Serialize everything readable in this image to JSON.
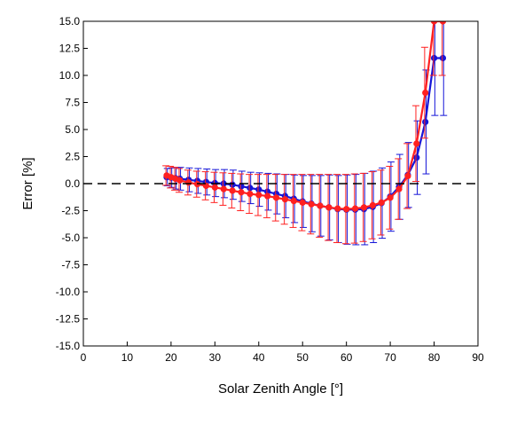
{
  "chart_data": {
    "type": "scatter",
    "xlabel": "Solar Zenith Angle [°]",
    "ylabel": "Error [%]",
    "xlim": [
      0,
      90
    ],
    "ylim": [
      -15,
      15
    ],
    "xticks": [
      0,
      10,
      20,
      30,
      40,
      50,
      60,
      70,
      80,
      90
    ],
    "yticks": [
      15.0,
      12.5,
      10.0,
      7.5,
      5.0,
      2.5,
      0.0,
      -2.5,
      -5.0,
      -7.5,
      -10.0,
      -12.5,
      -15.0
    ],
    "ytick_labels": [
      "15.0",
      "12.5",
      "10.0",
      "7.5",
      "5.0",
      "2.5",
      "0.0",
      "-2.5",
      "-5.0",
      "-7.5",
      "-10.0",
      "-12.5",
      "-15.0"
    ],
    "xtick_labels": [
      "0",
      "10",
      "20",
      "30",
      "40",
      "50",
      "60",
      "70",
      "80",
      "90"
    ],
    "reference_line": {
      "y": 0,
      "style": "dashed"
    },
    "grid": false,
    "legend": "none",
    "series": [
      {
        "color": "#1515d8",
        "x": [
          19,
          20,
          21,
          22,
          24,
          26,
          28,
          30,
          32,
          34,
          36,
          38,
          40,
          42,
          44,
          46,
          48,
          50,
          52,
          54,
          56,
          58,
          60,
          62,
          64,
          66,
          68,
          70,
          72,
          74,
          76,
          78,
          80,
          82
        ],
        "y": [
          0.6,
          0.55,
          0.5,
          0.45,
          0.35,
          0.25,
          0.15,
          0.05,
          0.0,
          -0.1,
          -0.25,
          -0.4,
          -0.55,
          -0.75,
          -0.95,
          -1.15,
          -1.4,
          -1.65,
          -1.85,
          -2.05,
          -2.2,
          -2.35,
          -2.4,
          -2.4,
          -2.35,
          -2.15,
          -1.8,
          -1.2,
          -0.3,
          0.8,
          2.4,
          5.7,
          11.6,
          11.6
        ],
        "err": [
          0.8,
          0.9,
          1.0,
          1.05,
          1.1,
          1.15,
          1.2,
          1.25,
          1.3,
          1.35,
          1.4,
          1.45,
          1.55,
          1.7,
          1.85,
          2.0,
          2.2,
          2.4,
          2.6,
          2.8,
          3.0,
          3.1,
          3.2,
          3.25,
          3.3,
          3.3,
          3.25,
          3.2,
          3.0,
          3.0,
          3.4,
          4.8,
          5.3,
          5.3
        ]
      },
      {
        "color": "#ff2020",
        "x": [
          19,
          20,
          21,
          22,
          24,
          26,
          28,
          30,
          32,
          34,
          36,
          38,
          40,
          42,
          44,
          46,
          48,
          50,
          52,
          54,
          56,
          58,
          60,
          62,
          64,
          66,
          68,
          70,
          72,
          74,
          76,
          78,
          80,
          82
        ],
        "y": [
          0.75,
          0.6,
          0.45,
          0.3,
          0.1,
          -0.05,
          -0.2,
          -0.35,
          -0.5,
          -0.65,
          -0.8,
          -0.95,
          -1.05,
          -1.15,
          -1.3,
          -1.45,
          -1.6,
          -1.75,
          -1.9,
          -2.05,
          -2.2,
          -2.3,
          -2.35,
          -2.3,
          -2.2,
          -2.0,
          -1.75,
          -1.3,
          -0.5,
          0.7,
          3.7,
          8.4,
          15.0,
          15.0
        ],
        "err": [
          0.9,
          1.0,
          1.05,
          1.1,
          1.15,
          1.2,
          1.3,
          1.4,
          1.5,
          1.6,
          1.7,
          1.8,
          1.9,
          2.0,
          2.15,
          2.3,
          2.45,
          2.6,
          2.75,
          2.9,
          3.05,
          3.15,
          3.2,
          3.2,
          3.15,
          3.1,
          3.0,
          2.9,
          2.8,
          3.0,
          3.5,
          4.2,
          5.0,
          5.0
        ]
      }
    ]
  }
}
